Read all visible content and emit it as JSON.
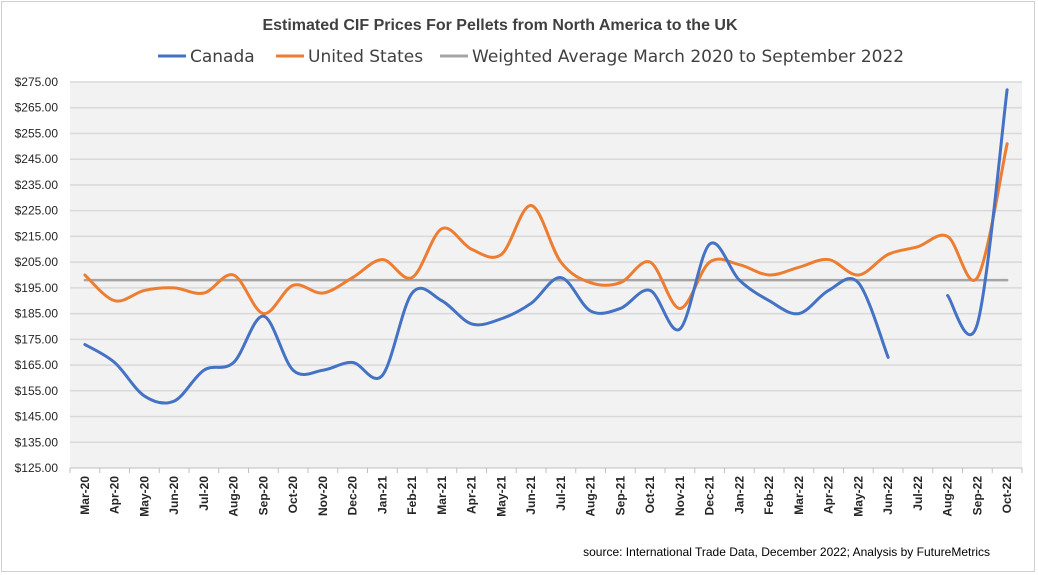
{
  "chart_data": {
    "type": "line",
    "title": "Estimated CIF Prices For Pellets from North America to the UK",
    "source": "source: International Trade Data, December 2022; Analysis by FutureMetrics",
    "categories": [
      "Mar-20",
      "Apr-20",
      "May-20",
      "Jun-20",
      "Jul-20",
      "Aug-20",
      "Sep-20",
      "Oct-20",
      "Nov-20",
      "Dec-20",
      "Jan-21",
      "Feb-21",
      "Mar-21",
      "Apr-21",
      "May-21",
      "Jun-21",
      "Jul-21",
      "Aug-21",
      "Sep-21",
      "Oct-21",
      "Nov-21",
      "Dec-21",
      "Jan-22",
      "Feb-22",
      "Mar-22",
      "Apr-22",
      "May-22",
      "Jun-22",
      "Jul-22",
      "Aug-22",
      "Sep-22",
      "Oct-22"
    ],
    "ylim": [
      125,
      275
    ],
    "yticks": [
      "$125.00",
      "$135.00",
      "$145.00",
      "$155.00",
      "$165.00",
      "$175.00",
      "$185.00",
      "$195.00",
      "$205.00",
      "$215.00",
      "$225.00",
      "$235.00",
      "$245.00",
      "$255.00",
      "$265.00",
      "$275.00"
    ],
    "grid": true,
    "legend": "top",
    "series": [
      {
        "name": "Canada",
        "color": "#4472C4",
        "values": [
          173,
          166,
          153,
          151,
          163,
          166,
          184,
          163,
          163,
          166,
          161,
          193,
          190,
          181,
          183,
          189,
          199,
          186,
          187,
          194,
          179,
          212,
          198,
          190,
          185,
          194,
          197,
          168,
          null,
          192,
          181,
          272
        ]
      },
      {
        "name": "United States",
        "color": "#ED7D31",
        "values": [
          200,
          190,
          194,
          195,
          193,
          200,
          185,
          196,
          193,
          199,
          206,
          199,
          218,
          210,
          208,
          227,
          205,
          197,
          197,
          205,
          187,
          205,
          204,
          200,
          203,
          206,
          200,
          208,
          211,
          215,
          199,
          251
        ]
      },
      {
        "name": "Weighted Average March 2020 to September 2022",
        "color": "#A5A5A5",
        "values": [
          198,
          198,
          198,
          198,
          198,
          198,
          198,
          198,
          198,
          198,
          198,
          198,
          198,
          198,
          198,
          198,
          198,
          198,
          198,
          198,
          198,
          198,
          198,
          198,
          198,
          198,
          198,
          198,
          198,
          198,
          198,
          198
        ]
      }
    ]
  }
}
